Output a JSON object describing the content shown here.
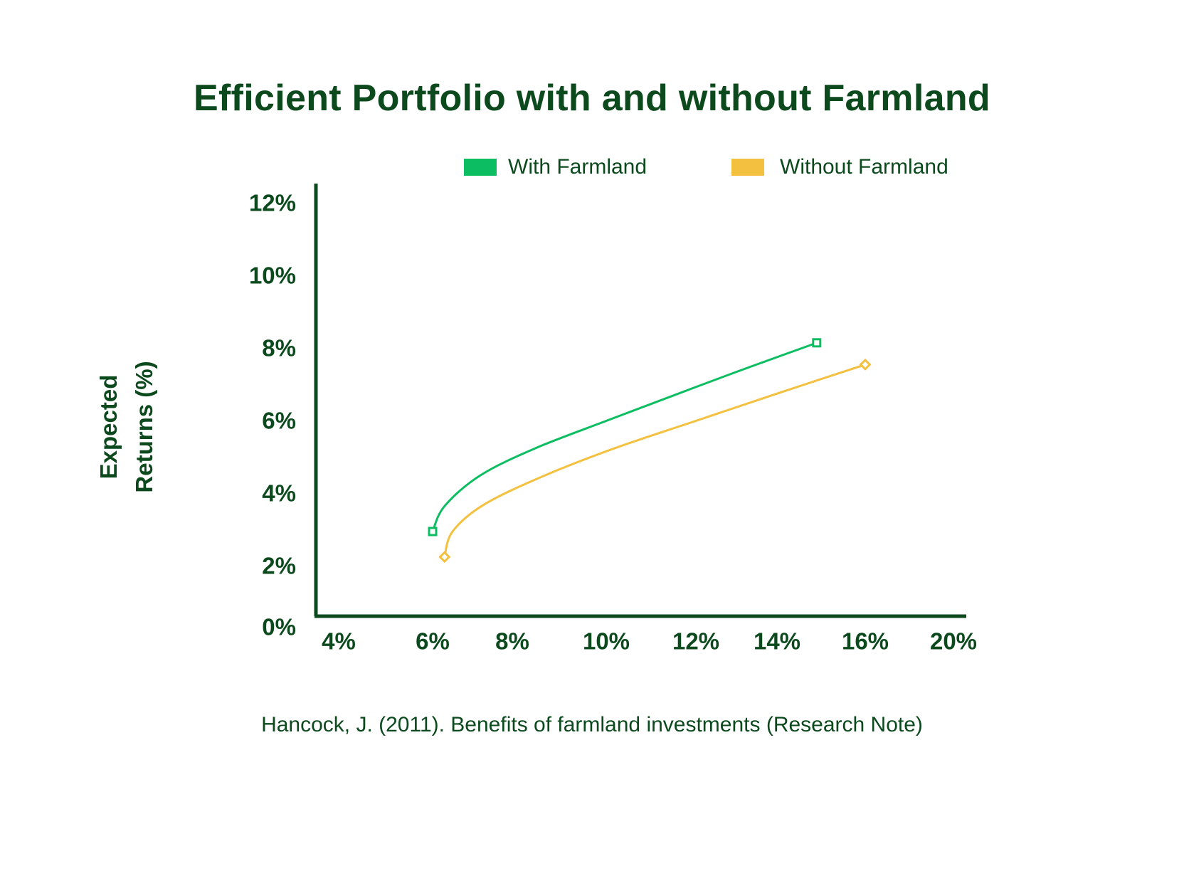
{
  "chart_data": {
    "type": "line",
    "title": "Efficient Portfolio with and without Farmland",
    "ylabel_lines": [
      "Expected",
      "Returns (%)"
    ],
    "xlabel": "",
    "x_ticks": [
      "4%",
      "6%",
      "8%",
      "10%",
      "12%",
      "14%",
      "16%",
      "20%"
    ],
    "y_ticks": [
      "0%",
      "2%",
      "4%",
      "6%",
      "8%",
      "10%",
      "12%"
    ],
    "legend_position": "top-right",
    "grid": false,
    "series": [
      {
        "name": "With Farmland",
        "color": "#0dbd62",
        "marker": "square",
        "points": [
          {
            "x": 6.0,
            "y": 3.0
          },
          {
            "x": 6.3,
            "y": 3.7
          },
          {
            "x": 7.2,
            "y": 4.55
          },
          {
            "x": 8.5,
            "y": 5.3
          },
          {
            "x": 10.0,
            "y": 6.05
          },
          {
            "x": 11.5,
            "y": 6.75
          },
          {
            "x": 13.0,
            "y": 7.4
          },
          {
            "x": 14.9,
            "y": 8.2
          }
        ]
      },
      {
        "name": "Without Farmland",
        "color": "#f3c13f",
        "marker": "diamond",
        "points": [
          {
            "x": 6.3,
            "y": 2.3
          },
          {
            "x": 6.5,
            "y": 3.0
          },
          {
            "x": 7.3,
            "y": 3.75
          },
          {
            "x": 8.7,
            "y": 4.55
          },
          {
            "x": 10.2,
            "y": 5.3
          },
          {
            "x": 12.0,
            "y": 6.05
          },
          {
            "x": 14.0,
            "y": 6.8
          },
          {
            "x": 16.0,
            "y": 7.6
          }
        ]
      }
    ],
    "source": "Hancock, J. (2011). Benefits of farmland investments (Research Note)"
  },
  "colors": {
    "text": "#0c4a1e",
    "axis": "#0c4a1e"
  }
}
